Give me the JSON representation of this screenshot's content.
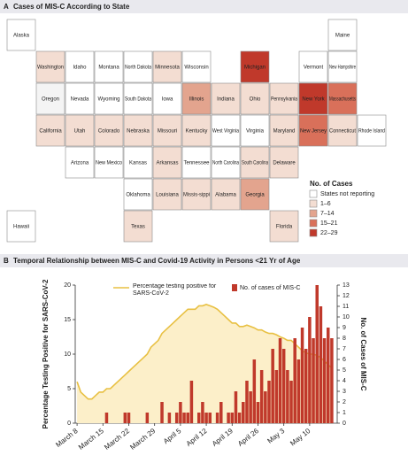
{
  "panel_a": {
    "panel": "A",
    "title": "Cases of MIS-C According to State",
    "states": [
      {
        "name": "Alaska",
        "color": "#ffffff"
      },
      {
        "name": "Maine",
        "color": "#ffffff"
      },
      {
        "name": "Washington",
        "color": "#f3ddd2"
      },
      {
        "name": "Idaho",
        "color": "#ffffff"
      },
      {
        "name": "Montana",
        "color": "#ffffff"
      },
      {
        "name": "North Dakota",
        "color": "#ffffff"
      },
      {
        "name": "Minnesota",
        "color": "#f3ddd2"
      },
      {
        "name": "Wisconsin",
        "color": "#ffffff"
      },
      {
        "name": "Michigan",
        "color": "#c0392b"
      },
      {
        "name": "Vermont",
        "color": "#ffffff"
      },
      {
        "name": "New Hampshire",
        "color": "#ffffff"
      },
      {
        "name": "Oregon",
        "color": "#f4f4f4"
      },
      {
        "name": "Nevada",
        "color": "#ffffff"
      },
      {
        "name": "Wyoming",
        "color": "#ffffff"
      },
      {
        "name": "South Dakota",
        "color": "#ffffff"
      },
      {
        "name": "Iowa",
        "color": "#ffffff"
      },
      {
        "name": "Illinois",
        "color": "#e3a48e"
      },
      {
        "name": "Indiana",
        "color": "#f3ddd2"
      },
      {
        "name": "Ohio",
        "color": "#f3ddd2"
      },
      {
        "name": "Pennsylvania",
        "color": "#f3ddd2"
      },
      {
        "name": "New York",
        "color": "#c0392b"
      },
      {
        "name": "Massachusetts",
        "color": "#d9705a"
      },
      {
        "name": "California",
        "color": "#f3ddd2"
      },
      {
        "name": "Utah",
        "color": "#f3ddd2"
      },
      {
        "name": "Colorado",
        "color": "#f3ddd2"
      },
      {
        "name": "Nebraska",
        "color": "#f3ddd2"
      },
      {
        "name": "Missouri",
        "color": "#f3ddd2"
      },
      {
        "name": "Kentucky",
        "color": "#f3ddd2"
      },
      {
        "name": "West Virginia",
        "color": "#ffffff"
      },
      {
        "name": "Virginia",
        "color": "#ffffff"
      },
      {
        "name": "Maryland",
        "color": "#f3ddd2"
      },
      {
        "name": "New Jersey",
        "color": "#d9705a"
      },
      {
        "name": "Connecticut",
        "color": "#f3ddd2"
      },
      {
        "name": "Rhode Island",
        "color": "#ffffff"
      },
      {
        "name": "Arizona",
        "color": "#ffffff"
      },
      {
        "name": "New Mexico",
        "color": "#ffffff"
      },
      {
        "name": "Kansas",
        "color": "#ffffff"
      },
      {
        "name": "Arkansas",
        "color": "#f3ddd2"
      },
      {
        "name": "Tennessee",
        "color": "#ffffff"
      },
      {
        "name": "North Carolina",
        "color": "#ffffff"
      },
      {
        "name": "South Carolina",
        "color": "#f3ddd2"
      },
      {
        "name": "Delaware",
        "color": "#f3ddd2"
      },
      {
        "name": "Oklahoma",
        "color": "#ffffff"
      },
      {
        "name": "Louisiana",
        "color": "#f3ddd2"
      },
      {
        "name": "Missis-sippi",
        "color": "#f3ddd2"
      },
      {
        "name": "Alabama",
        "color": "#f3ddd2"
      },
      {
        "name": "Georgia",
        "color": "#e3a48e"
      },
      {
        "name": "Hawaii",
        "color": "#ffffff"
      },
      {
        "name": "Texas",
        "color": "#f3ddd2"
      },
      {
        "name": "Florida",
        "color": "#f3ddd2"
      }
    ],
    "legend": {
      "title": "No. of Cases",
      "items": [
        {
          "label": "States not reporting",
          "color": "#ffffff"
        },
        {
          "label": "1–6",
          "color": "#f3ddd2"
        },
        {
          "label": "7–14",
          "color": "#e3a48e"
        },
        {
          "label": "15–21",
          "color": "#d9705a"
        },
        {
          "label": "22–29",
          "color": "#c0392b"
        }
      ]
    }
  },
  "chart_data": {
    "type": "combo",
    "panel": "B",
    "title": "Temporal Relationship between MIS-C and Covid-19 Activity in Persons <21 Yr of Age",
    "y_label": "Percentage Testing Positive for SARS-CoV-2",
    "y2_label": "No. of Cases of MIS-C",
    "categories": [
      "March 8",
      null,
      null,
      null,
      null,
      null,
      null,
      "March 15",
      null,
      null,
      null,
      null,
      null,
      null,
      "March 22",
      null,
      null,
      null,
      null,
      null,
      null,
      "March 29",
      null,
      null,
      null,
      null,
      null,
      null,
      "April 5",
      null,
      null,
      null,
      null,
      null,
      null,
      "April 12",
      null,
      null,
      null,
      null,
      null,
      null,
      "April 19",
      null,
      null,
      null,
      null,
      null,
      null,
      "April 26",
      null,
      null,
      null,
      null,
      null,
      null,
      "May 3",
      null,
      null,
      null,
      null,
      null,
      null,
      "May 10",
      null,
      null,
      null,
      null,
      null,
      null
    ],
    "ylim": [
      0,
      20
    ],
    "yticks": [
      0,
      5,
      10,
      15,
      20
    ],
    "y2lim": [
      0,
      13
    ],
    "y2ticks": [
      0,
      1,
      2,
      3,
      4,
      5,
      6,
      7,
      8,
      9,
      10,
      11,
      12,
      13
    ],
    "series": [
      {
        "name": "Percentage testing positive for SARS-CoV-2",
        "type": "area",
        "color": "#e8c042",
        "fill": "#fcefc9",
        "values": [
          6,
          4.5,
          4,
          3.5,
          3.5,
          4,
          4.5,
          4.5,
          5,
          5,
          5.5,
          6,
          6.5,
          7,
          7.5,
          8,
          8.5,
          9,
          9.5,
          10,
          11,
          11.5,
          12,
          13,
          13.5,
          14,
          14.5,
          15,
          15.5,
          16,
          16.5,
          16.5,
          16.5,
          17,
          17,
          17.2,
          17,
          16.8,
          16.5,
          16,
          15.5,
          15,
          14.5,
          14.5,
          14,
          14,
          14.2,
          14,
          13.8,
          13.5,
          13.5,
          13.2,
          13,
          13,
          12.8,
          12.5,
          12.3,
          12,
          12,
          11.5,
          11,
          10.5,
          10.2,
          10,
          10,
          9.8,
          9.5,
          9,
          8.5,
          8
        ]
      },
      {
        "name": "No. of cases of MIS-C",
        "type": "bar",
        "axis": "y2",
        "color": "#c0392b",
        "values": [
          0,
          0,
          0,
          0,
          0,
          0,
          0,
          0,
          1,
          0,
          0,
          0,
          0,
          1,
          1,
          0,
          0,
          0,
          0,
          1,
          0,
          0,
          0,
          2,
          0,
          1,
          0,
          1,
          2,
          1,
          1,
          4,
          0,
          1,
          2,
          1,
          1,
          0,
          1,
          2,
          0,
          1,
          1,
          3,
          1,
          2,
          4,
          3,
          6,
          2,
          5,
          3,
          4,
          7,
          5,
          8,
          7,
          5,
          4,
          8,
          6,
          9,
          7,
          10,
          8,
          13,
          11,
          8,
          9,
          8
        ]
      }
    ]
  }
}
